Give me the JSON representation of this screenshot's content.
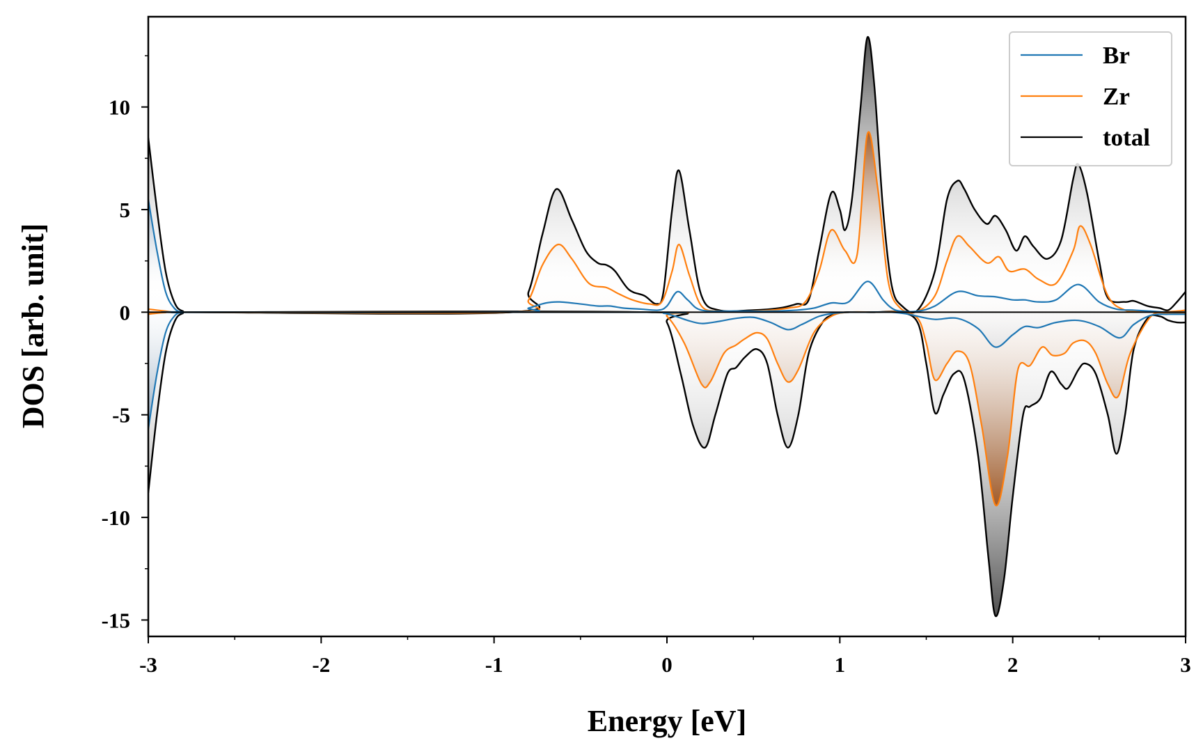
{
  "chart_data": {
    "type": "area",
    "title": "",
    "xlabel": "Energy [eV]",
    "ylabel": "DOS [arb. unit]",
    "xlim": [
      -3,
      3
    ],
    "ylim": [
      -15.8,
      14.4
    ],
    "xticks": [
      -3,
      -2,
      -1,
      0,
      1,
      2,
      3
    ],
    "xtick_labels": [
      "-3",
      "-2",
      "-1",
      "0",
      "1",
      "2",
      "3"
    ],
    "yticks": [
      -15,
      -10,
      -5,
      0,
      5,
      10
    ],
    "ytick_labels": [
      "-15",
      "-10",
      "-5",
      "0",
      "5",
      "10"
    ],
    "grid": false,
    "legend_position": "top-right",
    "colors": {
      "Br": "#1f77b4",
      "Zr": "#ff7f0e",
      "total": "#000000"
    },
    "series": [
      {
        "name": "Br",
        "spin_up": {
          "x": [
            -3.0,
            -2.95,
            -2.9,
            -2.85,
            -2.8,
            -2.7,
            -0.9,
            -0.8,
            -0.7,
            -0.62,
            -0.5,
            -0.4,
            -0.33,
            -0.25,
            -0.15,
            -0.05,
            0.0,
            0.06,
            0.12,
            0.2,
            0.4,
            0.6,
            0.75,
            0.85,
            0.95,
            1.05,
            1.16,
            1.25,
            1.3,
            1.35,
            1.45,
            1.55,
            1.68,
            1.8,
            1.9,
            2.0,
            2.07,
            2.15,
            2.25,
            2.38,
            2.5,
            2.6,
            2.7,
            2.8,
            2.9,
            3.0
          ],
          "y": [
            5.5,
            3.0,
            1.0,
            0.2,
            0.0,
            0.0,
            0.0,
            0.2,
            0.45,
            0.5,
            0.4,
            0.3,
            0.3,
            0.2,
            0.15,
            0.1,
            0.3,
            1.0,
            0.6,
            0.1,
            0.05,
            0.05,
            0.1,
            0.2,
            0.45,
            0.5,
            1.5,
            0.6,
            0.2,
            0.05,
            0.05,
            0.3,
            1.0,
            0.8,
            0.75,
            0.6,
            0.6,
            0.5,
            0.6,
            1.35,
            0.5,
            0.15,
            0.1,
            0.05,
            0.0,
            0.0
          ]
        },
        "spin_down": {
          "x": [
            -3.0,
            -2.95,
            -2.9,
            -2.85,
            -2.8,
            -2.7,
            -0.1,
            -0.02,
            0.05,
            0.12,
            0.2,
            0.3,
            0.4,
            0.5,
            0.6,
            0.7,
            0.78,
            0.88,
            0.97,
            1.05,
            1.15,
            1.3,
            1.4,
            1.45,
            1.55,
            1.68,
            1.8,
            1.9,
            2.0,
            2.07,
            2.15,
            2.25,
            2.38,
            2.5,
            2.62,
            2.7,
            2.8,
            2.9,
            3.0
          ],
          "y": [
            -5.7,
            -3.0,
            -1.0,
            -0.2,
            0.0,
            0.0,
            0.0,
            -0.05,
            -0.2,
            -0.4,
            -0.55,
            -0.45,
            -0.3,
            -0.25,
            -0.5,
            -0.85,
            -0.6,
            -0.2,
            -0.05,
            0.0,
            0.0,
            0.0,
            -0.1,
            -0.2,
            -0.35,
            -0.3,
            -0.8,
            -1.7,
            -1.1,
            -0.7,
            -0.75,
            -0.5,
            -0.4,
            -0.7,
            -1.25,
            -0.6,
            -0.15,
            -0.1,
            -0.1
          ]
        }
      },
      {
        "name": "Zr",
        "spin_up": {
          "x": [
            -3.0,
            -2.95,
            -2.9,
            -2.85,
            -2.8,
            -2.7,
            -0.9,
            -0.8,
            -0.72,
            -0.63,
            -0.55,
            -0.45,
            -0.35,
            -0.28,
            -0.2,
            -0.1,
            -0.03,
            0.03,
            0.07,
            0.13,
            0.2,
            0.3,
            0.5,
            0.7,
            0.8,
            0.88,
            0.95,
            1.03,
            1.1,
            1.16,
            1.22,
            1.28,
            1.35,
            1.45,
            1.55,
            1.62,
            1.68,
            1.75,
            1.85,
            1.92,
            1.98,
            2.07,
            2.15,
            2.25,
            2.35,
            2.39,
            2.45,
            2.55,
            2.65,
            2.75,
            2.85,
            2.95,
            3.0
          ],
          "y": [
            0.15,
            0.1,
            0.05,
            0.0,
            0.0,
            0.0,
            0.0,
            0.6,
            2.3,
            3.3,
            2.6,
            1.4,
            1.2,
            0.9,
            0.6,
            0.4,
            0.5,
            2.0,
            3.3,
            1.8,
            0.3,
            0.05,
            0.05,
            0.2,
            0.5,
            2.0,
            4.0,
            3.0,
            2.8,
            8.7,
            6.0,
            1.5,
            0.2,
            0.05,
            0.8,
            2.5,
            3.7,
            3.2,
            2.4,
            2.7,
            2.0,
            2.1,
            1.6,
            1.4,
            3.0,
            4.2,
            3.3,
            0.8,
            0.1,
            0.05,
            0.0,
            0.05,
            0.1
          ]
        },
        "spin_down": {
          "x": [
            -3.0,
            -2.95,
            -2.9,
            -2.8,
            -0.1,
            0.0,
            0.1,
            0.2,
            0.25,
            0.33,
            0.4,
            0.45,
            0.52,
            0.58,
            0.64,
            0.7,
            0.76,
            0.85,
            0.95,
            1.05,
            1.2,
            1.35,
            1.45,
            1.5,
            1.55,
            1.62,
            1.68,
            1.75,
            1.82,
            1.9,
            1.97,
            2.03,
            2.1,
            2.17,
            2.23,
            2.3,
            2.35,
            2.42,
            2.48,
            2.55,
            2.61,
            2.68,
            2.8,
            2.9,
            3.0
          ],
          "y": [
            -0.1,
            -0.05,
            -0.02,
            0.0,
            0.0,
            -0.2,
            -1.5,
            -3.5,
            -3.4,
            -2.0,
            -1.6,
            -1.3,
            -1.0,
            -1.3,
            -2.5,
            -3.4,
            -2.8,
            -1.0,
            -0.2,
            0.0,
            0.0,
            0.0,
            -0.3,
            -1.5,
            -3.3,
            -2.5,
            -1.9,
            -2.5,
            -5.5,
            -9.4,
            -7.0,
            -2.8,
            -2.6,
            -1.7,
            -2.1,
            -2.0,
            -1.5,
            -1.4,
            -2.0,
            -3.5,
            -4.1,
            -2.0,
            -0.2,
            -0.05,
            -0.05
          ]
        }
      },
      {
        "name": "total",
        "spin_up": {
          "x": [
            -3.0,
            -2.95,
            -2.9,
            -2.85,
            -2.8,
            -2.7,
            -0.9,
            -0.8,
            -0.72,
            -0.64,
            -0.55,
            -0.47,
            -0.4,
            -0.35,
            -0.3,
            -0.22,
            -0.13,
            -0.06,
            -0.02,
            0.03,
            0.07,
            0.13,
            0.2,
            0.3,
            0.5,
            0.65,
            0.75,
            0.82,
            0.88,
            0.95,
            1.0,
            1.03,
            1.07,
            1.12,
            1.16,
            1.2,
            1.25,
            1.3,
            1.36,
            1.45,
            1.55,
            1.62,
            1.68,
            1.72,
            1.78,
            1.85,
            1.9,
            1.96,
            2.02,
            2.07,
            2.12,
            2.2,
            2.28,
            2.35,
            2.38,
            2.43,
            2.5,
            2.55,
            2.65,
            2.7,
            2.78,
            2.85,
            2.9,
            2.95,
            3.0
          ],
          "y": [
            8.5,
            5.0,
            2.0,
            0.5,
            0.05,
            0.0,
            0.0,
            1.0,
            3.8,
            6.0,
            4.5,
            3.0,
            2.4,
            2.3,
            2.0,
            1.1,
            0.8,
            0.4,
            1.0,
            5.0,
            6.9,
            4.0,
            0.8,
            0.1,
            0.1,
            0.2,
            0.4,
            0.6,
            3.0,
            5.8,
            5.0,
            4.0,
            5.5,
            10.0,
            13.4,
            11.0,
            5.0,
            1.3,
            0.3,
            0.1,
            2.0,
            5.5,
            6.4,
            6.0,
            5.0,
            4.3,
            4.7,
            4.0,
            3.0,
            3.7,
            3.2,
            2.6,
            3.5,
            6.5,
            7.2,
            5.8,
            2.5,
            0.7,
            0.5,
            0.55,
            0.3,
            0.2,
            0.1,
            0.5,
            1.0
          ]
        },
        "spin_down": {
          "x": [
            -3.0,
            -2.95,
            -2.9,
            -2.85,
            -2.8,
            -2.7,
            -0.1,
            0.0,
            0.08,
            0.15,
            0.22,
            0.28,
            0.35,
            0.4,
            0.45,
            0.52,
            0.58,
            0.64,
            0.7,
            0.76,
            0.82,
            0.9,
            0.97,
            1.05,
            1.2,
            1.35,
            1.45,
            1.5,
            1.55,
            1.6,
            1.66,
            1.72,
            1.8,
            1.86,
            1.9,
            1.95,
            2.0,
            2.06,
            2.1,
            2.16,
            2.22,
            2.28,
            2.32,
            2.38,
            2.42,
            2.48,
            2.55,
            2.6,
            2.65,
            2.7,
            2.78,
            2.85,
            2.9,
            2.95,
            3.0
          ],
          "y": [
            -8.8,
            -5.0,
            -2.0,
            -0.5,
            -0.05,
            0.0,
            0.0,
            -0.5,
            -3.0,
            -5.5,
            -6.6,
            -5.0,
            -3.0,
            -2.7,
            -2.2,
            -1.8,
            -2.5,
            -5.0,
            -6.6,
            -5.0,
            -2.0,
            -0.5,
            -0.1,
            0.0,
            0.0,
            0.0,
            -0.5,
            -2.5,
            -4.9,
            -4.0,
            -3.0,
            -3.3,
            -7.0,
            -12.0,
            -14.8,
            -13.0,
            -9.0,
            -5.0,
            -4.6,
            -4.2,
            -2.9,
            -3.5,
            -3.7,
            -2.8,
            -2.5,
            -3.0,
            -5.0,
            -6.9,
            -5.0,
            -1.8,
            -0.3,
            -0.2,
            -0.4,
            -0.5,
            -0.5
          ]
        }
      }
    ]
  }
}
